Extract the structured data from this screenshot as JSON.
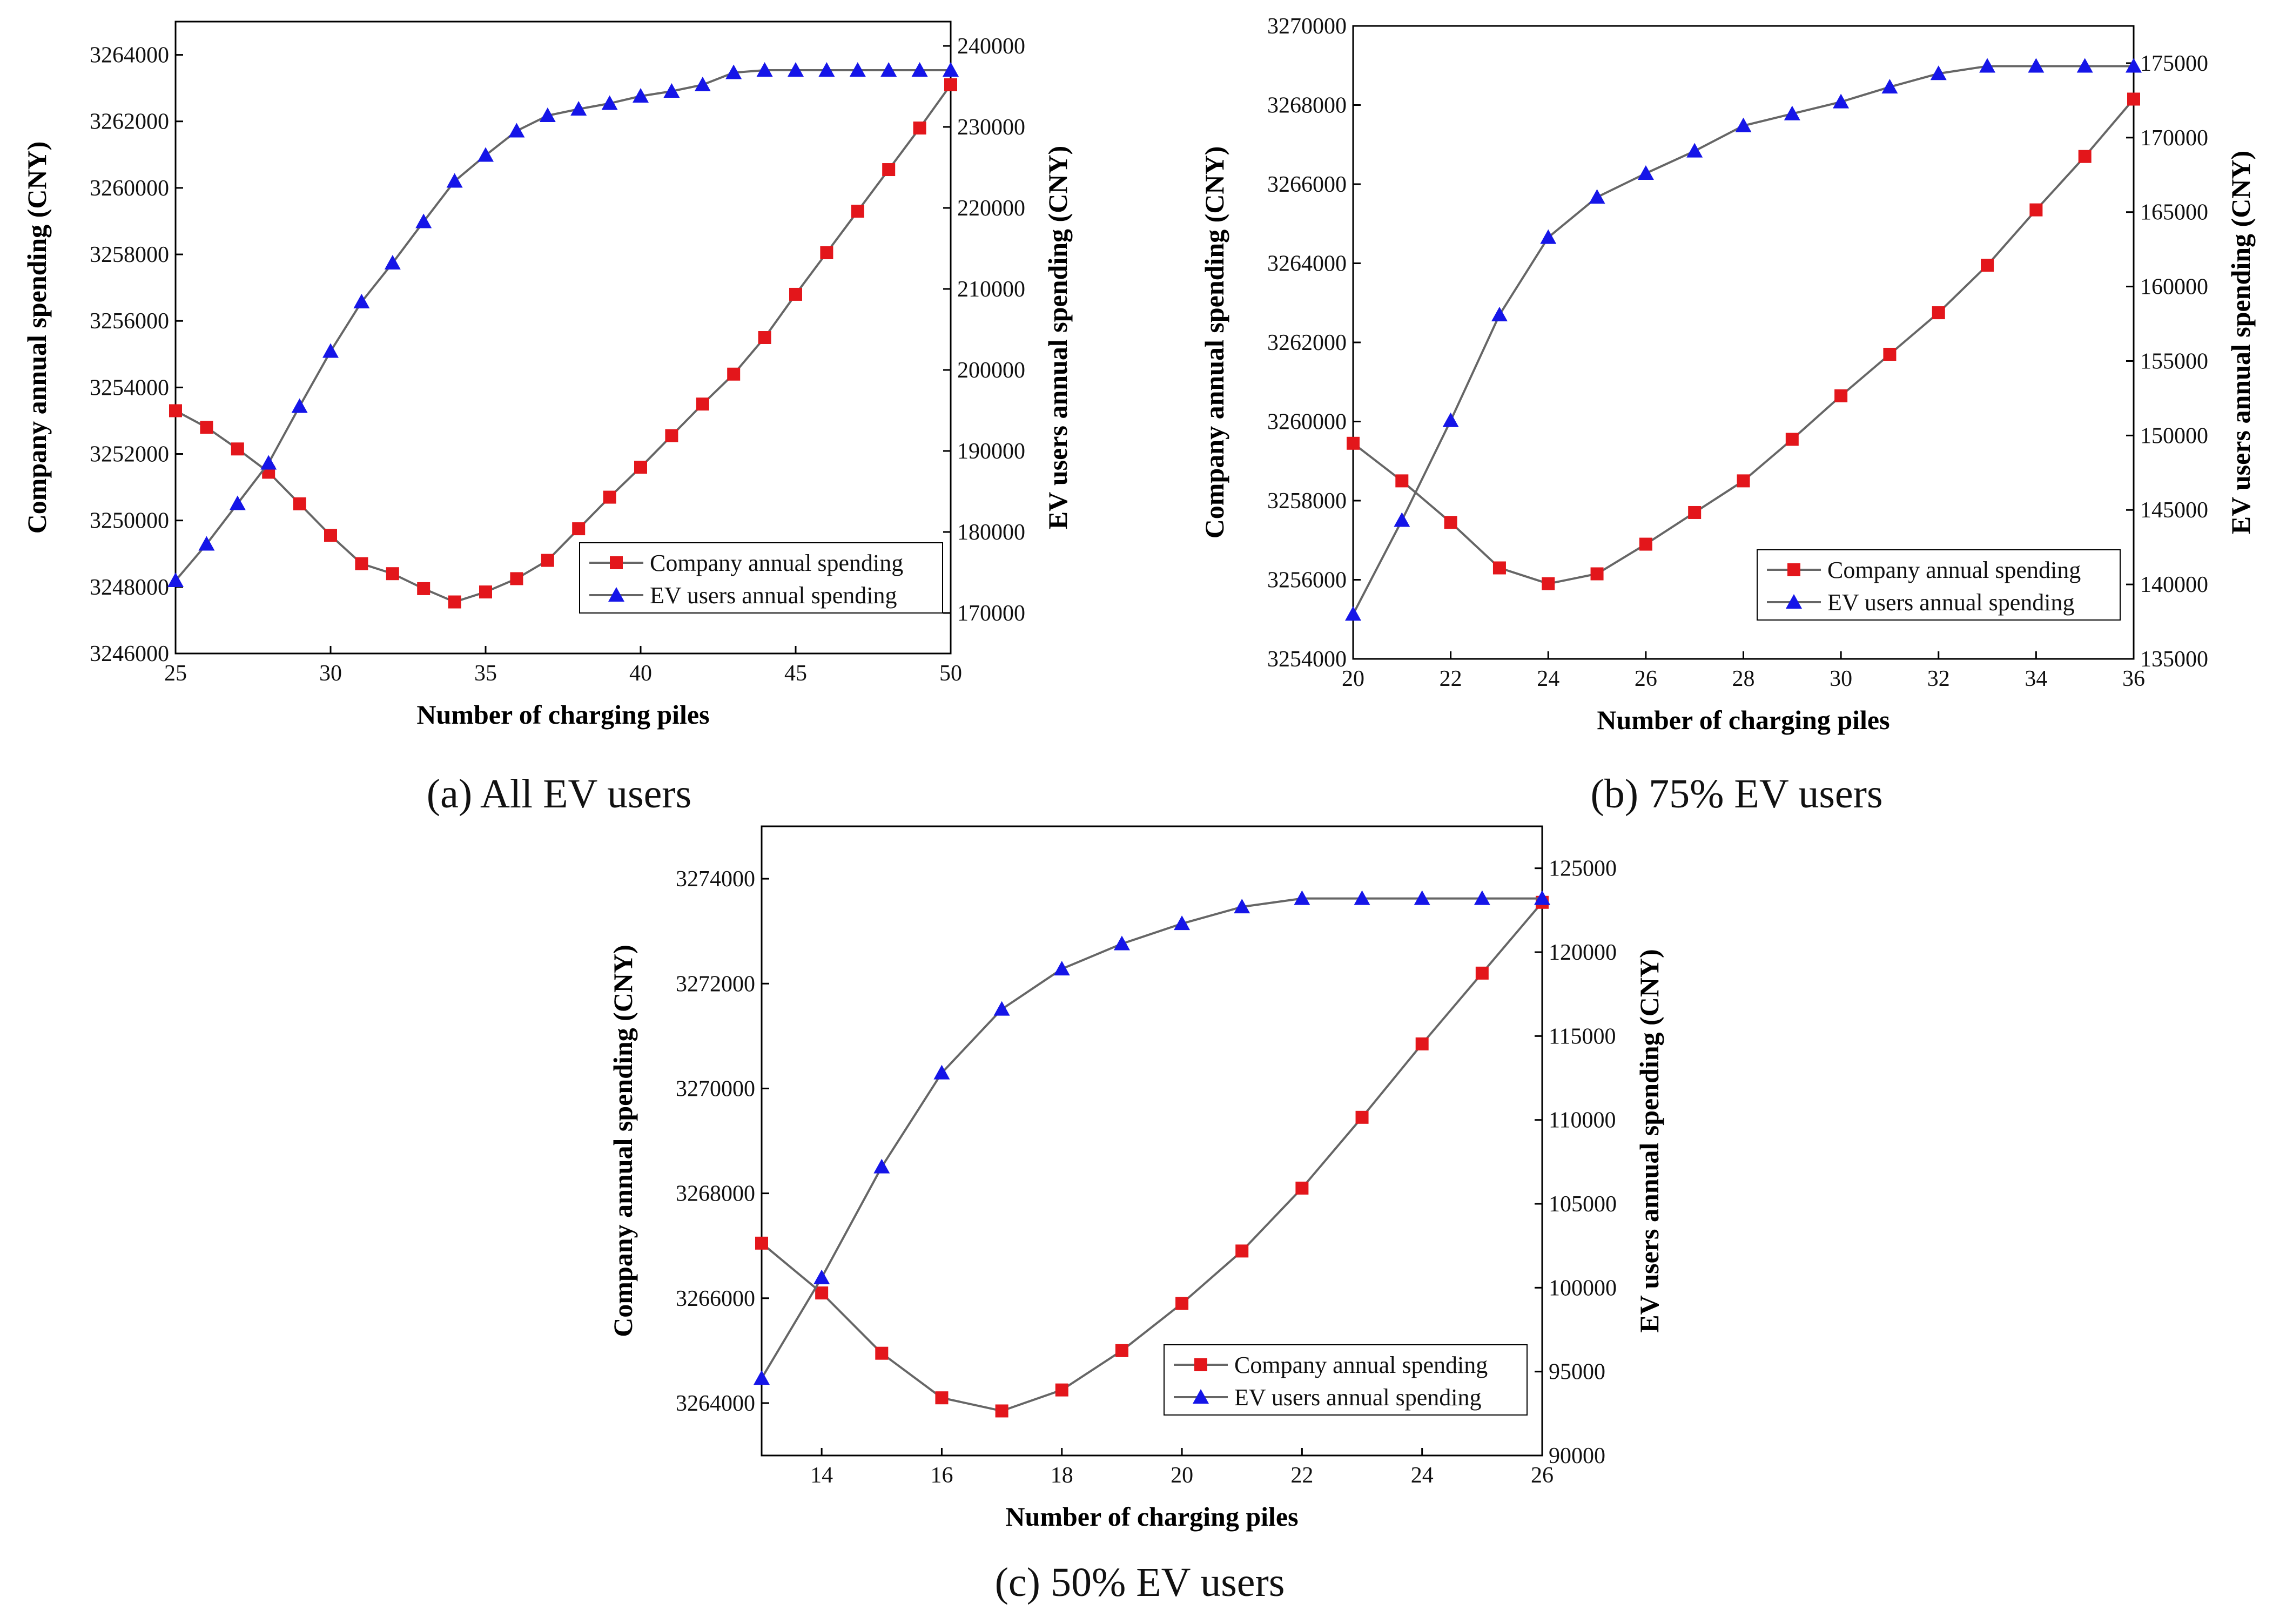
{
  "chart_data": [
    {
      "type": "line",
      "caption_letter": "(a)",
      "caption_text": "All EV users",
      "xlabel": "Number of charging piles",
      "ylabel_left": "Company annual spending (CNY)",
      "ylabel_right": "EV users annual spending (CNY)",
      "xlim": [
        25,
        50
      ],
      "xticks": [
        25,
        30,
        35,
        40,
        45,
        50
      ],
      "ylim_left": [
        3246000,
        3265000
      ],
      "yticks_left": [
        3246000,
        3248000,
        3250000,
        3252000,
        3254000,
        3256000,
        3258000,
        3260000,
        3262000,
        3264000
      ],
      "ylim_right": [
        165000,
        243000
      ],
      "yticks_right": [
        170000,
        180000,
        190000,
        200000,
        210000,
        220000,
        230000,
        240000
      ],
      "legend_position": "lower-right",
      "x": [
        25,
        26,
        27,
        28,
        29,
        30,
        31,
        32,
        33,
        34,
        35,
        36,
        37,
        38,
        39,
        40,
        41,
        42,
        43,
        44,
        45,
        46,
        47,
        48,
        49,
        50
      ],
      "series": [
        {
          "name": "Company annual spending",
          "axis": "left",
          "color": "#e3161b",
          "marker": "square",
          "values": [
            3253300,
            3252800,
            3252150,
            3251450,
            3250500,
            3249550,
            3248700,
            3248400,
            3247950,
            3247550,
            3247850,
            3248250,
            3248800,
            3249750,
            3250700,
            3251600,
            3252550,
            3253500,
            3254400,
            3255500,
            3256800,
            3258050,
            3259300,
            3260550,
            3261800,
            3263100
          ]
        },
        {
          "name": "EV users annual spending",
          "axis": "right",
          "color": "#1515e8",
          "marker": "triangle",
          "values": [
            174000,
            178500,
            183500,
            188500,
            195500,
            202300,
            208400,
            213200,
            218300,
            223300,
            226500,
            229500,
            231400,
            232200,
            232900,
            233800,
            234400,
            235200,
            236700,
            237000,
            237000,
            237000,
            237000,
            237000,
            237000,
            237000
          ]
        }
      ]
    },
    {
      "type": "line",
      "caption_letter": "(b)",
      "caption_text": "75% EV users",
      "xlabel": "Number of charging piles",
      "ylabel_left": "Company annual spending (CNY)",
      "ylabel_right": "EV users annual spending (CNY)",
      "xlim": [
        20,
        36
      ],
      "xticks": [
        20,
        22,
        24,
        26,
        28,
        30,
        32,
        34,
        36
      ],
      "ylim_left": [
        3254000,
        3270000
      ],
      "yticks_left": [
        3254000,
        3256000,
        3258000,
        3260000,
        3262000,
        3264000,
        3266000,
        3268000,
        3270000
      ],
      "ylim_right": [
        135000,
        177500
      ],
      "yticks_right": [
        135000,
        140000,
        145000,
        150000,
        155000,
        160000,
        165000,
        170000,
        175000
      ],
      "legend_position": "lower-right",
      "x": [
        20,
        21,
        22,
        23,
        24,
        25,
        26,
        27,
        28,
        29,
        30,
        31,
        32,
        33,
        34,
        35,
        36
      ],
      "series": [
        {
          "name": "Company annual spending",
          "axis": "left",
          "color": "#e3161b",
          "marker": "square",
          "values": [
            3259450,
            3258500,
            3257450,
            3256300,
            3255900,
            3256150,
            3256900,
            3257700,
            3258500,
            3259550,
            3260650,
            3261700,
            3262750,
            3263950,
            3265350,
            3266700,
            3268150
          ]
        },
        {
          "name": "EV users annual spending",
          "axis": "right",
          "color": "#1515e8",
          "marker": "triangle",
          "values": [
            138000,
            144300,
            151000,
            158100,
            163300,
            166000,
            167600,
            169100,
            170800,
            171600,
            172400,
            173400,
            174300,
            174800,
            174800,
            174800,
            174800
          ]
        }
      ]
    },
    {
      "type": "line",
      "caption_letter": "(c)",
      "caption_text": "50% EV users",
      "xlabel": "Number of charging piles",
      "ylabel_left": "Company annual spending (CNY)",
      "ylabel_right": "EV users annual spending (CNY)",
      "xlim": [
        13,
        26
      ],
      "xticks": [
        14,
        16,
        18,
        20,
        22,
        24,
        26
      ],
      "ylim_left": [
        3263000,
        3275000
      ],
      "yticks_left": [
        3264000,
        3266000,
        3268000,
        3270000,
        3272000,
        3274000
      ],
      "ylim_right": [
        90000,
        127500
      ],
      "yticks_right": [
        90000,
        95000,
        100000,
        105000,
        110000,
        115000,
        120000,
        125000
      ],
      "legend_position": "lower-right",
      "x": [
        13,
        14,
        15,
        16,
        17,
        18,
        19,
        20,
        21,
        22,
        23,
        24,
        25,
        26
      ],
      "series": [
        {
          "name": "Company annual spending",
          "axis": "left",
          "color": "#e3161b",
          "marker": "square",
          "values": [
            3267050,
            3266100,
            3264950,
            3264100,
            3263850,
            3264250,
            3265000,
            3265900,
            3266900,
            3268100,
            3269450,
            3270850,
            3272200,
            3273550
          ]
        },
        {
          "name": "EV users annual spending",
          "axis": "right",
          "color": "#1515e8",
          "marker": "triangle",
          "values": [
            94600,
            100600,
            107200,
            112800,
            116600,
            119000,
            120500,
            121700,
            122700,
            123200,
            123200,
            123200,
            123200,
            123200
          ]
        }
      ]
    }
  ]
}
